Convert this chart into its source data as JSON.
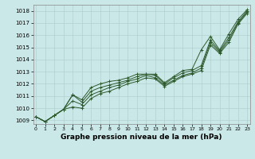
{
  "title": "Graphe pression niveau de la mer (hPa)",
  "bg_color": "#cbe8e8",
  "grid_color": "#b0d0d0",
  "line_color": "#2d5a2d",
  "ylim": [
    1008.7,
    1018.5
  ],
  "xlim": [
    -0.3,
    23.3
  ],
  "yticks": [
    1009,
    1010,
    1011,
    1012,
    1013,
    1014,
    1015,
    1016,
    1017,
    1018
  ],
  "xticks": [
    0,
    1,
    2,
    3,
    4,
    5,
    6,
    7,
    8,
    9,
    10,
    11,
    12,
    13,
    14,
    15,
    16,
    17,
    18,
    19,
    20,
    21,
    22,
    23
  ],
  "series": [
    [
      1009.3,
      1008.9,
      1009.4,
      1009.9,
      1011.1,
      1010.7,
      1011.7,
      1012.0,
      1012.2,
      1012.3,
      1012.5,
      1012.8,
      1012.8,
      1012.8,
      1012.1,
      1012.6,
      1013.1,
      1013.2,
      1014.8,
      1015.9,
      1014.8,
      1016.1,
      1017.3,
      1018.1
    ],
    [
      1009.3,
      1008.9,
      1009.4,
      1009.9,
      1011.1,
      1010.5,
      1011.4,
      1011.7,
      1011.9,
      1012.1,
      1012.3,
      1012.6,
      1012.8,
      1012.7,
      1012.0,
      1012.5,
      1012.9,
      1013.1,
      1013.5,
      1015.6,
      1014.7,
      1015.8,
      1017.1,
      1018.0
    ],
    [
      1009.3,
      1008.9,
      1009.4,
      1009.9,
      1010.6,
      1010.3,
      1011.1,
      1011.4,
      1011.7,
      1011.9,
      1012.2,
      1012.4,
      1012.7,
      1012.5,
      1011.9,
      1012.3,
      1012.7,
      1012.9,
      1013.3,
      1015.4,
      1014.6,
      1015.6,
      1017.0,
      1017.9
    ],
    [
      1009.3,
      1008.9,
      1009.4,
      1009.9,
      1010.1,
      1010.0,
      1010.8,
      1011.2,
      1011.4,
      1011.7,
      1012.0,
      1012.2,
      1012.5,
      1012.4,
      1011.8,
      1012.2,
      1012.6,
      1012.8,
      1013.1,
      1015.2,
      1014.5,
      1015.4,
      1016.9,
      1017.8
    ]
  ]
}
